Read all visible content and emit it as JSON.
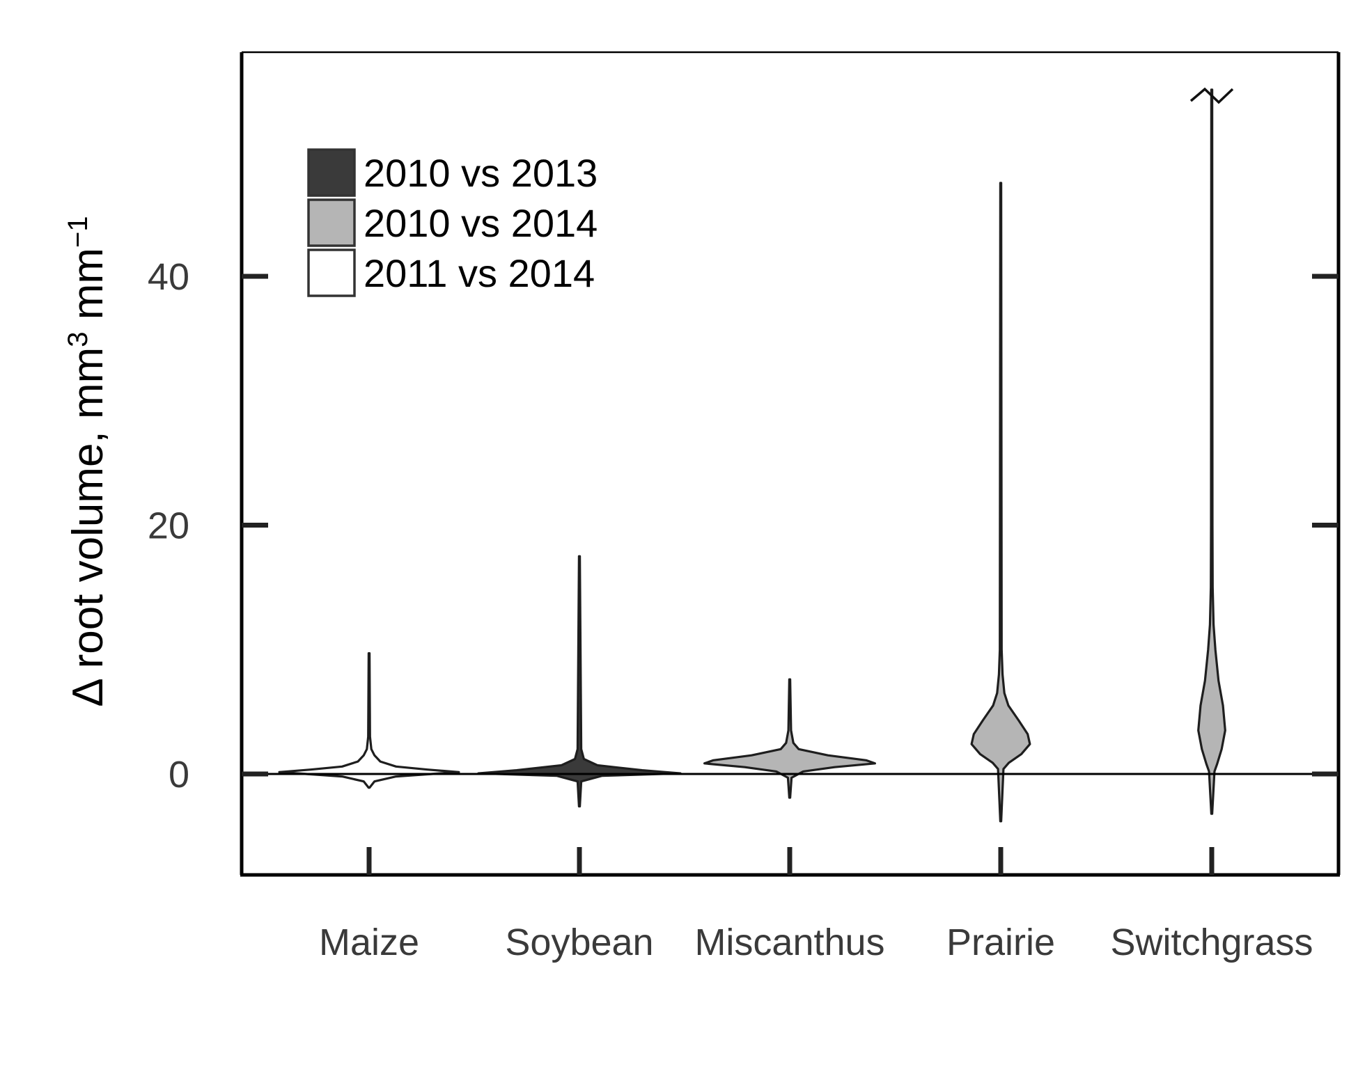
{
  "colors": {
    "dark": "#3a3a3a",
    "gray": "#b5b5b5",
    "white": "#ffffff",
    "stroke": "#1e1e1e"
  },
  "chart_data": {
    "type": "violin",
    "title": "",
    "xlabel": "",
    "ylabel_prefix": "Δ root volume, mm",
    "ylabel_sup1": "3",
    "ylabel_mid": " mm",
    "ylabel_sup2": "−1",
    "ylim": [
      -8,
      58
    ],
    "yticks": [
      0,
      20,
      40
    ],
    "ytick_labels": [
      "0",
      "20",
      "40"
    ],
    "zero_line": true,
    "grid": false,
    "legend_position": "top-left",
    "legend": [
      {
        "label": "2010 vs 2013",
        "color": "#3a3a3a"
      },
      {
        "label": "2010 vs 2014",
        "color": "#b5b5b5"
      },
      {
        "label": "2011 vs 2014",
        "color": "#ffffff"
      }
    ],
    "categories": [
      "Maize",
      "Soybean",
      "Miscanthus",
      "Prairie",
      "Switchgrass"
    ],
    "violins": [
      {
        "category": "Maize",
        "series": "2011 vs 2014",
        "color": "#ffffff",
        "min": -1.1,
        "max": 9.7,
        "profile": [
          [
            -1.1,
            0.001
          ],
          [
            -0.6,
            0.012
          ],
          [
            -0.2,
            0.06
          ],
          [
            0.0,
            0.14
          ],
          [
            0.15,
            0.2
          ],
          [
            0.35,
            0.13
          ],
          [
            0.6,
            0.06
          ],
          [
            1.0,
            0.025
          ],
          [
            1.5,
            0.012
          ],
          [
            2.0,
            0.005
          ],
          [
            3.0,
            0.002
          ],
          [
            9.7,
            0.001
          ]
        ]
      },
      {
        "category": "Soybean",
        "series": "2010 vs 2013",
        "color": "#3a3a3a",
        "min": -2.6,
        "max": 17.5,
        "profile": [
          [
            -2.6,
            0.001
          ],
          [
            -0.6,
            0.004
          ],
          [
            -0.15,
            0.05
          ],
          [
            0.0,
            0.18
          ],
          [
            0.05,
            0.225
          ],
          [
            0.3,
            0.14
          ],
          [
            0.7,
            0.04
          ],
          [
            1.2,
            0.01
          ],
          [
            2.0,
            0.004
          ],
          [
            17.5,
            0.001
          ]
        ]
      },
      {
        "category": "Miscanthus",
        "series": "2010 vs 2014",
        "color": "#b5b5b5",
        "min": -1.9,
        "max": 7.6,
        "profile": [
          [
            -1.9,
            0.001
          ],
          [
            -0.3,
            0.004
          ],
          [
            0.2,
            0.03
          ],
          [
            0.55,
            0.1
          ],
          [
            0.85,
            0.19
          ],
          [
            1.1,
            0.17
          ],
          [
            1.5,
            0.085
          ],
          [
            2.0,
            0.02
          ],
          [
            2.5,
            0.008
          ],
          [
            3.5,
            0.003
          ],
          [
            7.6,
            0.001
          ]
        ]
      },
      {
        "category": "Prairie",
        "series": "2010 vs 2014",
        "color": "#b5b5b5",
        "min": -3.8,
        "max": 47.5,
        "profile": [
          [
            -3.8,
            0.001
          ],
          [
            0.4,
            0.006
          ],
          [
            0.9,
            0.018
          ],
          [
            1.6,
            0.046
          ],
          [
            2.4,
            0.065
          ],
          [
            3.2,
            0.06
          ],
          [
            4.3,
            0.04
          ],
          [
            5.5,
            0.017
          ],
          [
            6.5,
            0.008
          ],
          [
            8.0,
            0.004
          ],
          [
            10.0,
            0.002
          ],
          [
            47.5,
            0.001
          ]
        ]
      },
      {
        "category": "Switchgrass",
        "series": "2010 vs 2014",
        "color": "#b5b5b5",
        "min": -3.2,
        "max": 55.0,
        "profile": [
          [
            -3.2,
            0.001
          ],
          [
            0.2,
            0.006
          ],
          [
            0.8,
            0.012
          ],
          [
            2.0,
            0.022
          ],
          [
            3.5,
            0.03
          ],
          [
            5.5,
            0.025
          ],
          [
            7.5,
            0.015
          ],
          [
            10.0,
            0.008
          ],
          [
            12.0,
            0.004
          ],
          [
            15.0,
            0.002
          ],
          [
            20.0,
            0.0015
          ],
          [
            55.0,
            0.001
          ]
        ]
      }
    ],
    "axis_break_on": "Switchgrass"
  }
}
